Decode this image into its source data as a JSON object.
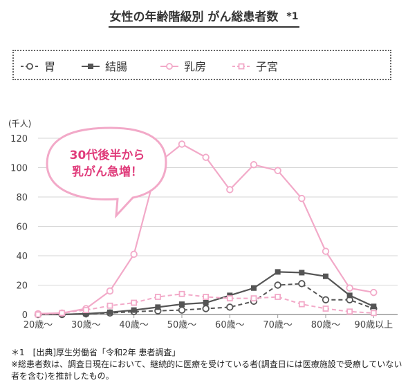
{
  "chart_data": {
    "type": "line",
    "title": "女性の年齢階級別 がん総患者数",
    "title_note": "*1",
    "unit_label": "(千人)",
    "categories": [
      "20歳～",
      "30歳～",
      "40歳～",
      "50歳～",
      "60歳～",
      "70歳～",
      "80歳～",
      "90歳以上"
    ],
    "x": [
      "20",
      "25",
      "30",
      "35",
      "40",
      "45",
      "50",
      "55",
      "60",
      "65",
      "70",
      "75",
      "80",
      "85",
      "90",
      "95"
    ],
    "ylim": [
      0,
      120
    ],
    "yticks": [
      "0",
      "20",
      "40",
      "60",
      "80",
      "100",
      "120"
    ],
    "legend_position": "top",
    "series": [
      {
        "name": "胃",
        "color": "#555555",
        "marker": "circle",
        "dash": true,
        "values": [
          0,
          0,
          0.5,
          1,
          2,
          2.5,
          3,
          4,
          5,
          9,
          20,
          21,
          10,
          10,
          4,
          null
        ]
      },
      {
        "name": "結腸",
        "color": "#555555",
        "marker": "square",
        "dash": false,
        "values": [
          0,
          0,
          0.5,
          1.5,
          3,
          5,
          7,
          8,
          13,
          18,
          29,
          28.5,
          26,
          13,
          5.5,
          null
        ]
      },
      {
        "name": "乳房",
        "color": "#f2a9c8",
        "marker": "circle",
        "dash": false,
        "values": [
          0.5,
          1,
          4,
          16,
          41,
          103,
          116,
          107,
          85,
          102,
          98,
          79,
          43,
          18,
          15,
          null
        ]
      },
      {
        "name": "子宮",
        "color": "#f2a9c8",
        "marker": "square",
        "dash": true,
        "values": [
          0,
          1,
          3,
          6,
          8,
          12,
          14,
          12,
          11,
          11,
          12,
          7,
          4,
          2,
          1,
          null
        ]
      }
    ],
    "annotation": {
      "lines": [
        "30代後半から",
        "乳がん急増！"
      ],
      "color": "#e03c7b"
    }
  },
  "notes": {
    "line1": "＊1　[出典]厚生労働省「令和2年 患者調査」",
    "line2": "※総患者数は、調査日現在において、継続的に医療を受けている者(調査日には医療施設で受療していない者を含む)を推計したもの。"
  }
}
